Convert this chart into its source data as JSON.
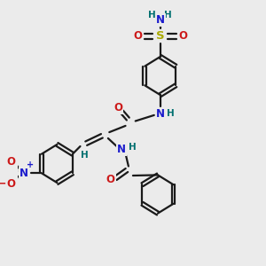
{
  "bg_color": "#ebebeb",
  "bond_color": "#1a1a1a",
  "bond_width": 1.6,
  "atom_colors": {
    "C": "#1a1a1a",
    "N": "#1a1acc",
    "O": "#cc1a1a",
    "S": "#aaaa00",
    "H": "#007070",
    "plus": "#1a1acc",
    "minus": "#cc1a1a"
  },
  "figsize": [
    3.0,
    3.0
  ],
  "dpi": 100
}
